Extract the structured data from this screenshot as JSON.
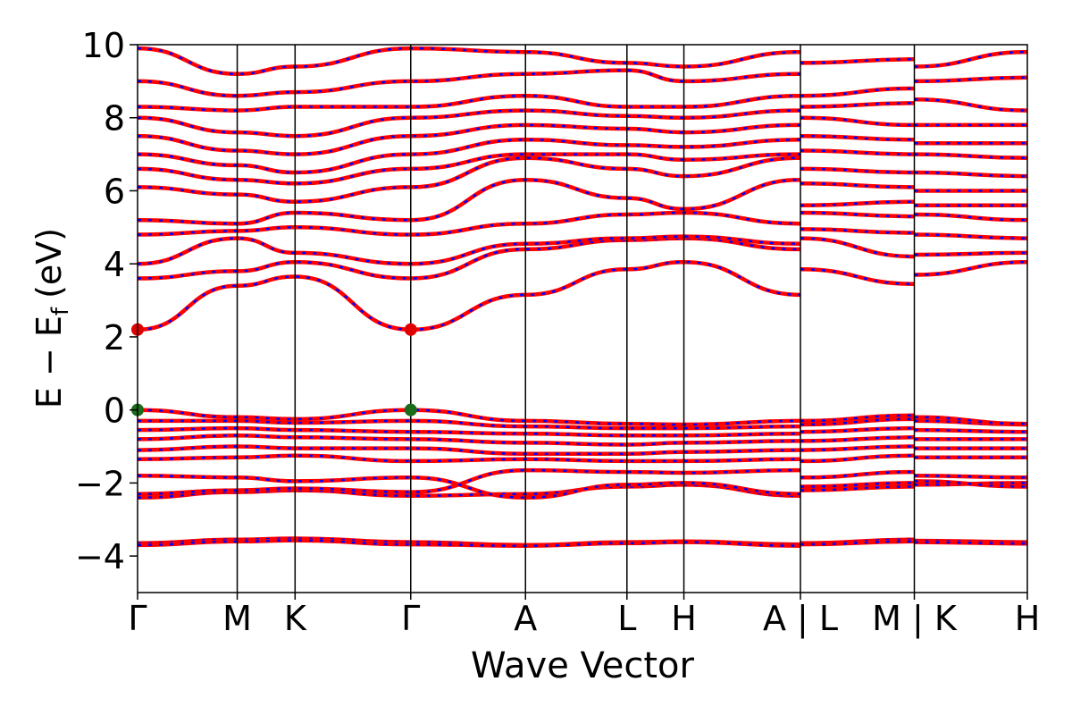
{
  "chart_data": {
    "type": "line",
    "title": "",
    "xlabel": "Wave Vector",
    "ylabel_main": "E − E",
    "ylabel_sub": "f",
    "ylabel_unit": "(eV)",
    "ylim": [
      -5,
      10
    ],
    "yticks": [
      -4,
      -2,
      0,
      2,
      4,
      6,
      8,
      10
    ],
    "ytick_labels": [
      "−4",
      "−2",
      "0",
      "2",
      "4",
      "6",
      "8",
      "10"
    ],
    "xlim": [
      0,
      100
    ],
    "kpoint_ticks": [
      {
        "x": 0,
        "label": "Γ"
      },
      {
        "x": 11.2,
        "label": "M"
      },
      {
        "x": 17.7,
        "label": "K"
      },
      {
        "x": 30.7,
        "label": "Γ"
      },
      {
        "x": 43.6,
        "label": "A"
      },
      {
        "x": 55.0,
        "label": "L"
      },
      {
        "x": 61.4,
        "label": "H"
      },
      {
        "x": 74.5,
        "label": "A | L"
      },
      {
        "x": 87.3,
        "label": "M | K"
      },
      {
        "x": 100,
        "label": "H"
      }
    ],
    "segment_breaks": [
      74.5,
      87.3
    ],
    "colors": {
      "band_primary": "#ff0000",
      "band_secondary": "#0000ff",
      "cbm_marker": "#e00000",
      "vbm_marker": "#1a6b1a"
    },
    "extrema": {
      "cbm": [
        {
          "x": 0,
          "y": 2.2
        },
        {
          "x": 30.7,
          "y": 2.2
        }
      ],
      "vbm": [
        {
          "x": 0,
          "y": 0.0
        },
        {
          "x": 30.7,
          "y": 0.0
        }
      ]
    },
    "band_knots_x": [
      0,
      11.2,
      17.7,
      30.7,
      43.6,
      55.0,
      61.4,
      74.5,
      74.5,
      87.3,
      87.3,
      100
    ],
    "series": [
      {
        "values": [
          -3.65,
          -3.55,
          -3.52,
          -3.62,
          -3.7,
          -3.62,
          -3.6,
          -3.68,
          -3.65,
          -3.55,
          -3.58,
          -3.62
        ]
      },
      {
        "values": [
          -3.7,
          -3.6,
          -3.57,
          -3.68,
          -3.72,
          -3.65,
          -3.62,
          -3.72,
          -3.68,
          -3.6,
          -3.62,
          -3.66
        ]
      },
      {
        "values": [
          -2.4,
          -2.25,
          -2.2,
          -2.35,
          -2.3,
          -2.1,
          -2.05,
          -2.35,
          -2.2,
          -2.1,
          -2.05,
          -2.0
        ]
      },
      {
        "values": [
          -2.3,
          -2.2,
          -2.15,
          -2.25,
          -1.65,
          -1.7,
          -1.72,
          -1.65,
          -2.1,
          -2.0,
          -1.95,
          -2.1
        ]
      },
      {
        "values": [
          -1.8,
          -1.85,
          -1.95,
          -1.85,
          -2.4,
          -2.05,
          -2.0,
          -2.3,
          -1.85,
          -1.7,
          -1.8,
          -1.85
        ]
      },
      {
        "values": [
          -1.35,
          -1.3,
          -1.25,
          -1.4,
          -1.35,
          -1.4,
          -1.4,
          -1.35,
          -1.4,
          -1.25,
          -1.3,
          -1.3
        ]
      },
      {
        "values": [
          -1.1,
          -1.0,
          -1.05,
          -1.05,
          -1.2,
          -1.2,
          -1.15,
          -1.1,
          -1.1,
          -1.0,
          -1.05,
          -1.05
        ]
      },
      {
        "values": [
          -0.8,
          -0.7,
          -0.75,
          -0.8,
          -0.9,
          -0.95,
          -0.9,
          -0.85,
          -0.85,
          -0.75,
          -0.8,
          -0.8
        ]
      },
      {
        "values": [
          -0.55,
          -0.5,
          -0.55,
          -0.6,
          -0.65,
          -0.7,
          -0.7,
          -0.65,
          -0.6,
          -0.5,
          -0.55,
          -0.6
        ]
      },
      {
        "values": [
          -0.3,
          -0.3,
          -0.35,
          -0.3,
          -0.45,
          -0.5,
          -0.5,
          -0.45,
          -0.4,
          -0.25,
          -0.3,
          -0.4
        ]
      },
      {
        "values": [
          0.0,
          -0.2,
          -0.25,
          0.0,
          -0.3,
          -0.38,
          -0.4,
          -0.3,
          -0.3,
          -0.15,
          -0.2,
          -0.38
        ]
      },
      {
        "values": [
          2.2,
          3.4,
          3.65,
          2.2,
          3.15,
          3.85,
          4.05,
          3.15,
          3.85,
          3.45,
          3.7,
          4.05
        ]
      },
      {
        "values": [
          3.6,
          3.8,
          4.05,
          3.6,
          4.4,
          4.65,
          4.7,
          4.4,
          4.7,
          4.2,
          4.25,
          4.3
        ]
      },
      {
        "values": [
          4.0,
          4.7,
          4.3,
          4.0,
          4.55,
          4.7,
          4.75,
          4.55,
          4.95,
          4.85,
          4.8,
          4.7
        ]
      },
      {
        "values": [
          4.8,
          4.9,
          5.0,
          4.8,
          5.1,
          5.35,
          5.4,
          5.1,
          5.4,
          5.3,
          5.35,
          5.2
        ]
      },
      {
        "values": [
          5.2,
          5.1,
          5.4,
          5.2,
          6.3,
          5.8,
          5.5,
          6.3,
          5.6,
          5.7,
          5.6,
          5.6
        ]
      },
      {
        "values": [
          6.1,
          5.9,
          5.7,
          6.1,
          6.9,
          6.6,
          6.4,
          6.9,
          6.2,
          6.1,
          6.0,
          6.0
        ]
      },
      {
        "values": [
          6.6,
          6.3,
          6.2,
          6.6,
          7.0,
          7.0,
          6.85,
          7.0,
          6.6,
          6.5,
          6.5,
          6.4
        ]
      },
      {
        "values": [
          7.0,
          6.7,
          6.5,
          7.0,
          7.4,
          7.25,
          7.2,
          7.4,
          7.1,
          7.0,
          7.0,
          6.9
        ]
      },
      {
        "values": [
          7.5,
          7.1,
          7.0,
          7.5,
          7.8,
          7.7,
          7.6,
          7.8,
          7.5,
          7.4,
          7.3,
          7.3
        ]
      },
      {
        "values": [
          8.0,
          7.6,
          7.5,
          8.0,
          8.2,
          8.05,
          8.0,
          8.2,
          8.0,
          7.8,
          7.8,
          7.8
        ]
      },
      {
        "values": [
          8.3,
          8.2,
          8.3,
          8.3,
          8.6,
          8.3,
          8.3,
          8.6,
          8.3,
          8.4,
          8.5,
          8.2
        ]
      },
      {
        "values": [
          9.0,
          8.6,
          8.7,
          9.0,
          9.2,
          9.3,
          9.0,
          9.2,
          8.6,
          8.8,
          9.0,
          9.1
        ]
      },
      {
        "values": [
          9.9,
          9.2,
          9.4,
          9.9,
          9.8,
          9.5,
          9.4,
          9.8,
          9.5,
          9.6,
          9.4,
          9.8
        ]
      }
    ]
  }
}
